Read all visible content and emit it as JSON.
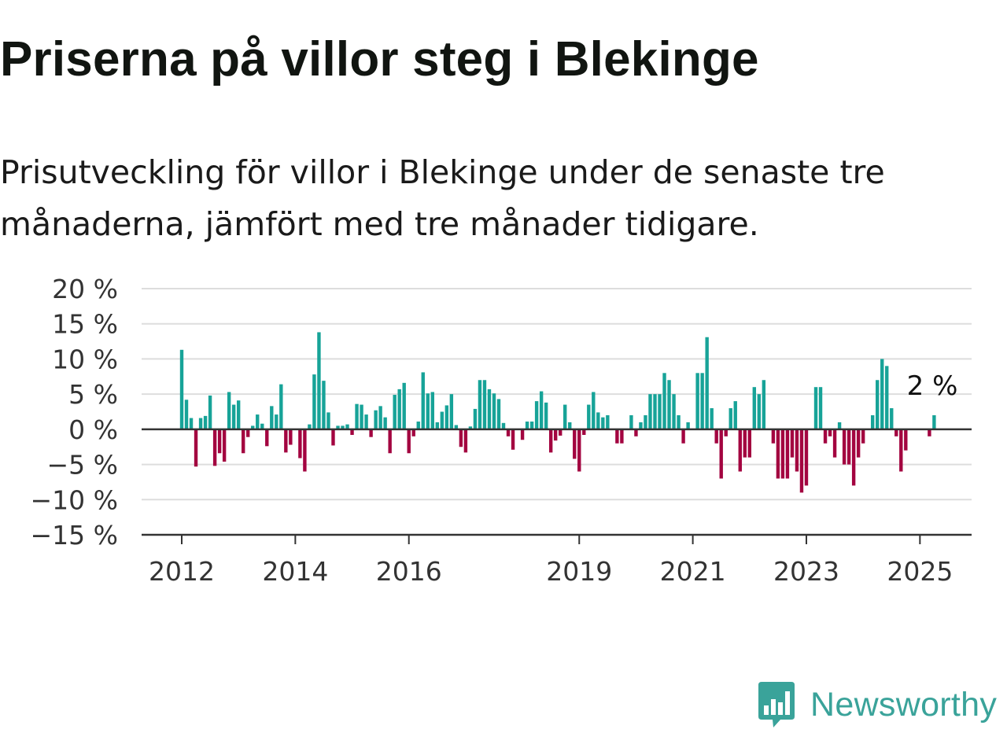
{
  "title": "Priserna på villor steg i Blekinge",
  "subtitle": "Prisutveckling för villor i Blekinge under de senaste tre månaderna, jämfört med tre månader tidigare.",
  "logo": {
    "name": "Newsworthy",
    "icon": "newsworthy-logo-icon"
  },
  "colors": {
    "positive": "#17a398",
    "negative": "#a30440",
    "grid": "#dddddd",
    "zero_line": "#333333",
    "text": "#333333"
  },
  "chart_data": {
    "type": "bar",
    "x_start": "2012-01",
    "interval": "month",
    "ylim": [
      -15,
      20
    ],
    "yticks": [
      20,
      15,
      10,
      5,
      0,
      -5,
      -10,
      -15
    ],
    "ytick_labels": [
      "20 %",
      "15 %",
      "10 %",
      "5 %",
      "0 %",
      "−5 %",
      "−10 %",
      "−15 %"
    ],
    "xticks": [
      "2012-01",
      "2014-01",
      "2016-01",
      "2019-01",
      "2021-01",
      "2023-01",
      "2025-01"
    ],
    "xtick_labels": [
      "2012",
      "2014",
      "2016",
      "2019",
      "2021",
      "2023",
      "2025"
    ],
    "annotation": "2 %",
    "grid": true,
    "values": [
      11.3,
      4.2,
      1.6,
      -5.3,
      1.6,
      1.9,
      4.8,
      -5.2,
      -3.4,
      -4.6,
      5.3,
      3.5,
      4.1,
      -3.4,
      -1.1,
      0.5,
      2.1,
      0.8,
      -2.4,
      3.3,
      2.1,
      6.4,
      -3.3,
      -2.2,
      0,
      -4.1,
      -6.0,
      0.7,
      7.8,
      13.8,
      6.9,
      2.4,
      -2.3,
      0.5,
      0.5,
      0.7,
      -0.8,
      3.6,
      3.5,
      2.1,
      -1.1,
      2.7,
      3.3,
      1.7,
      -3.4,
      4.9,
      5.7,
      6.6,
      -3.4,
      -1.0,
      1.1,
      8.1,
      5.1,
      5.3,
      1.0,
      2.5,
      3.4,
      5.0,
      0.6,
      -2.5,
      -3.3,
      0.4,
      2.9,
      7.0,
      7.0,
      5.7,
      5.1,
      4.3,
      0.9,
      -1.0,
      -2.9,
      0,
      -1.5,
      1.1,
      1.1,
      4.0,
      5.4,
      3.8,
      -3.3,
      -1.6,
      -0.9,
      3.5,
      1.0,
      -4.2,
      -6.0,
      -0.8,
      3.5,
      5.3,
      2.4,
      1.7,
      2.0,
      0,
      -2.0,
      -2.0,
      0,
      2.0,
      -1.0,
      1.0,
      2.0,
      5.0,
      5.0,
      5.0,
      8.0,
      7.0,
      5.0,
      2.0,
      -2.0,
      1.0,
      0,
      8.0,
      8.0,
      13.1,
      3.0,
      -2.0,
      -7.0,
      -1.0,
      3.0,
      4.0,
      -6.0,
      -4.0,
      -4.0,
      6.0,
      5.0,
      7.0,
      0,
      -2.0,
      -7.0,
      -7.0,
      -7.0,
      -4.0,
      -6.0,
      -9.0,
      -8.0,
      0,
      6.0,
      6.0,
      -2.0,
      -1.0,
      -4.0,
      1.0,
      -5.0,
      -5.0,
      -8.0,
      -4.0,
      -2.0,
      0,
      2.0,
      7.0,
      10.0,
      9.0,
      3.0,
      -1.0,
      -6.0,
      -3.0,
      0,
      0,
      0,
      0,
      -1.0,
      2.0
    ]
  }
}
